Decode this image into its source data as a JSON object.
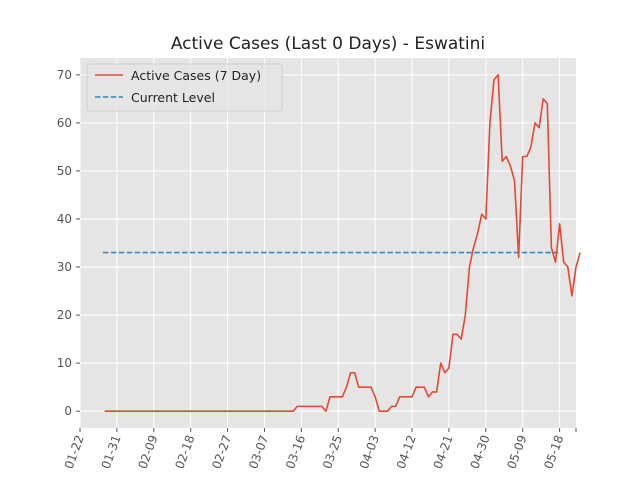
{
  "chart_data": {
    "type": "line",
    "title": "Active Cases (Last 0 Days) - Eswatini",
    "xlabel": "",
    "ylabel": "",
    "ylim": [
      -3.5,
      73.5
    ],
    "xlim": [
      "01-22",
      "05-22"
    ],
    "yticks": [
      0,
      10,
      20,
      30,
      40,
      50,
      60,
      70
    ],
    "xticks": [
      "01-22",
      "01-31",
      "02-09",
      "02-18",
      "02-27",
      "03-07",
      "03-16",
      "03-25",
      "04-03",
      "04-12",
      "04-21",
      "04-30",
      "05-09",
      "05-18"
    ],
    "grid": true,
    "legend_position": "top-left",
    "series": [
      {
        "name": "Active Cases (7 Day)",
        "color": "#E24A33",
        "style": "solid",
        "start_date": "01-28",
        "values": [
          0,
          0,
          0,
          0,
          0,
          0,
          0,
          0,
          0,
          0,
          0,
          0,
          0,
          0,
          0,
          0,
          0,
          0,
          0,
          0,
          0,
          0,
          0,
          0,
          0,
          0,
          0,
          0,
          0,
          0,
          0,
          0,
          0,
          0,
          0,
          0,
          0,
          0,
          0,
          0,
          0,
          0,
          0,
          0,
          0,
          0,
          0,
          1,
          1,
          1,
          1,
          1,
          1,
          1,
          0,
          3,
          3,
          3,
          3,
          5,
          8,
          8,
          5,
          5,
          5,
          5,
          3,
          0,
          0,
          0,
          1,
          1,
          3,
          3,
          3,
          3,
          5,
          5,
          5,
          3,
          4,
          4,
          10,
          8,
          9,
          16,
          16,
          15,
          20,
          30,
          34,
          37,
          41,
          40,
          60,
          69,
          70,
          52,
          53,
          51,
          48,
          32,
          53,
          53,
          55,
          60,
          59,
          65,
          64,
          34,
          31,
          39,
          31,
          30,
          24,
          30,
          33
        ]
      },
      {
        "name": "Current Level",
        "color": "#348ABD",
        "style": "dashed",
        "value": 33,
        "x_start": "01-22",
        "x_end": "05-23"
      }
    ]
  }
}
